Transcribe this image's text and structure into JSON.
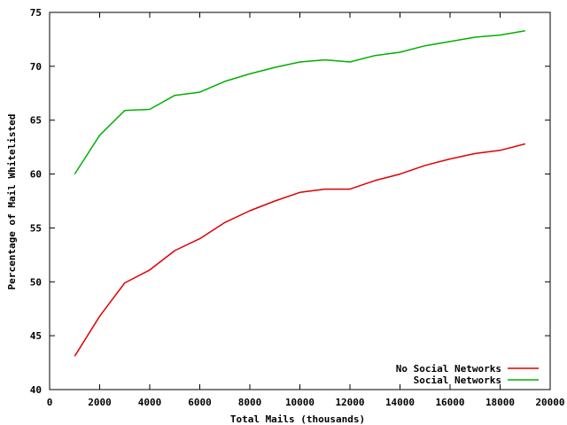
{
  "chart_data": {
    "type": "line",
    "title": "",
    "xlabel": "Total Mails (thousands)",
    "ylabel": "Percentage of Mail Whitelisted",
    "xlim": [
      0,
      20000
    ],
    "ylim": [
      40,
      75
    ],
    "xticks": [
      "0",
      "2000",
      "4000",
      "6000",
      "8000",
      "10000",
      "12000",
      "14000",
      "16000",
      "18000",
      "20000"
    ],
    "yticks": [
      "40",
      "45",
      "50",
      "55",
      "60",
      "65",
      "70",
      "75"
    ],
    "grid": false,
    "legend_position": "bottom-right",
    "x": [
      1000,
      2000,
      3000,
      4000,
      5000,
      6000,
      7000,
      8000,
      9000,
      10000,
      11000,
      12000,
      13000,
      14000,
      15000,
      16000,
      17000,
      18000,
      19000
    ],
    "series": [
      {
        "name": "No Social Networks",
        "color": "#e00000",
        "values": [
          43.1,
          46.8,
          49.9,
          51.1,
          52.9,
          54.0,
          55.5,
          56.6,
          57.5,
          58.3,
          58.6,
          58.6,
          59.4,
          60.0,
          60.8,
          61.4,
          61.9,
          62.2,
          62.8
        ]
      },
      {
        "name": "Social Networks",
        "color": "#00b000",
        "values": [
          60.0,
          63.6,
          65.9,
          66.0,
          67.3,
          67.6,
          68.6,
          69.3,
          69.9,
          70.4,
          70.6,
          70.4,
          71.0,
          71.3,
          71.9,
          72.3,
          72.7,
          72.9,
          73.3
        ]
      }
    ]
  }
}
